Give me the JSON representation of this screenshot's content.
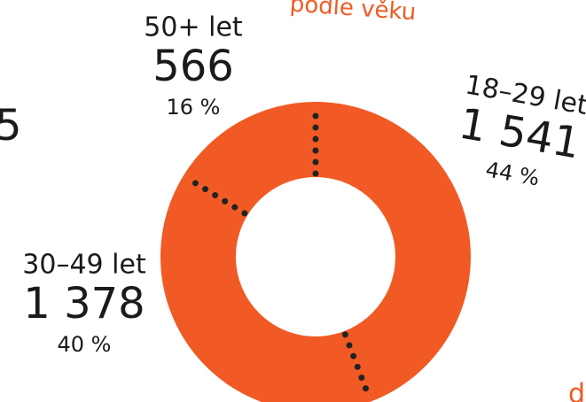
{
  "chart_data": {
    "type": "donut",
    "title": "podle věku",
    "categories": [
      "18–29 let",
      "30–49 let",
      "50+ let"
    ],
    "values": [
      1541,
      1378,
      566
    ],
    "value_labels": [
      "1 541",
      "1 378",
      "566"
    ],
    "percents": [
      44,
      40,
      16
    ],
    "percent_labels": [
      "44 %",
      "40 %",
      "16 %"
    ],
    "color": "#f15a24",
    "annotations": [
      "5",
      "d"
    ]
  }
}
